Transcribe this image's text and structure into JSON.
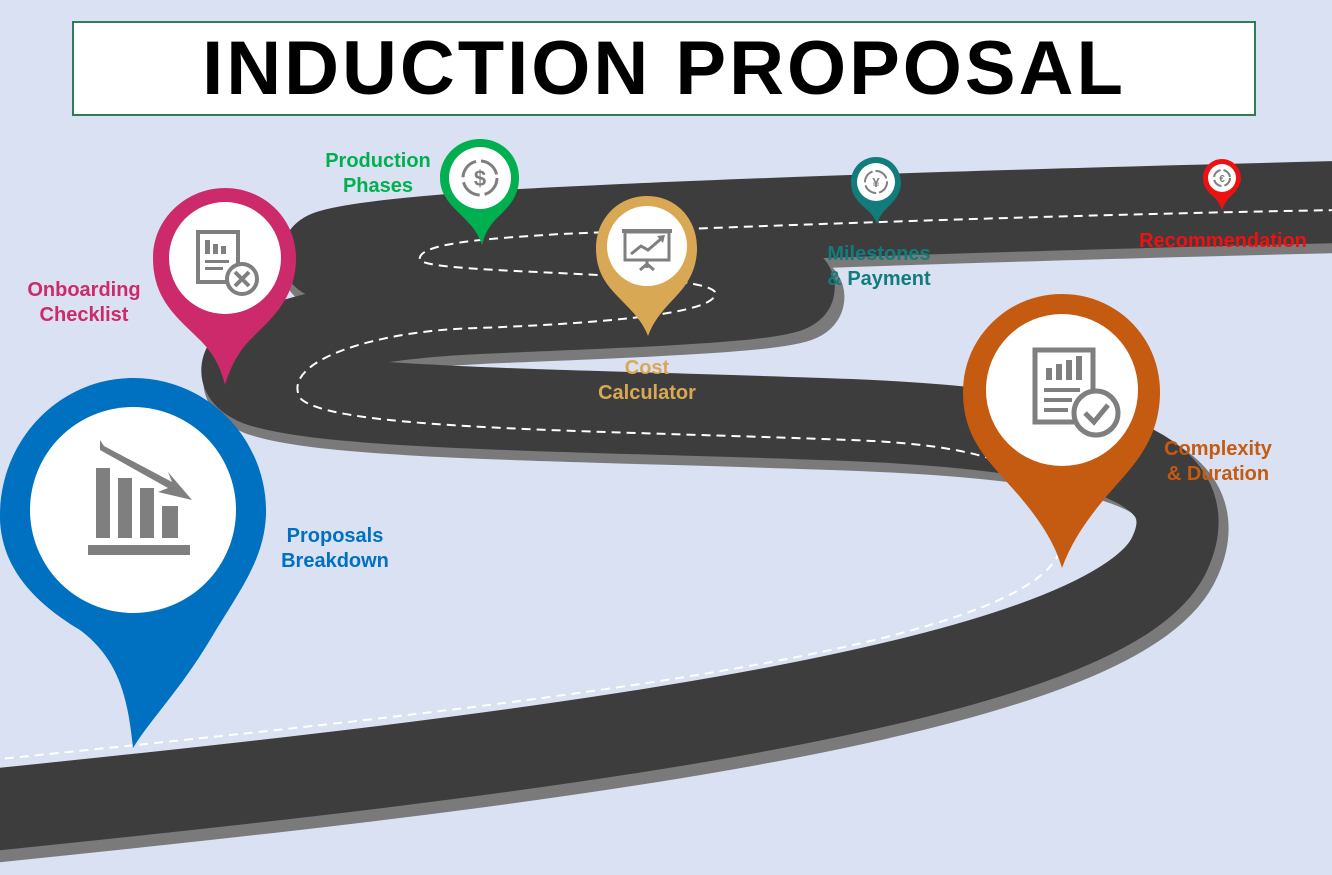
{
  "title": "INDUCTION PROPOSAL",
  "milestones": [
    {
      "line1": "Proposals",
      "line2": "Breakdown",
      "color": "#0070c0",
      "icon": "declining-bar-chart-icon"
    },
    {
      "line1": "Onboarding",
      "line2": "Checklist",
      "color": "#cc2a6a",
      "icon": "report-cancel-icon"
    },
    {
      "line1": "Production",
      "line2": "Phases",
      "color": "#00b050",
      "icon": "dollar-cycle-icon"
    },
    {
      "line1": "Cost",
      "line2": "Calculator",
      "color": "#d9a855",
      "icon": "presentation-board-icon"
    },
    {
      "line1": "Milestones",
      "line2": "& Payment",
      "color": "#127c7c",
      "icon": "yen-cycle-icon"
    },
    {
      "line1": "Recommendation",
      "line2": "",
      "color": "#ee1111",
      "icon": "euro-cycle-icon"
    },
    {
      "line1": "Complexity",
      "line2": "& Duration",
      "color": "#c55a11",
      "icon": "report-check-icon"
    }
  ]
}
